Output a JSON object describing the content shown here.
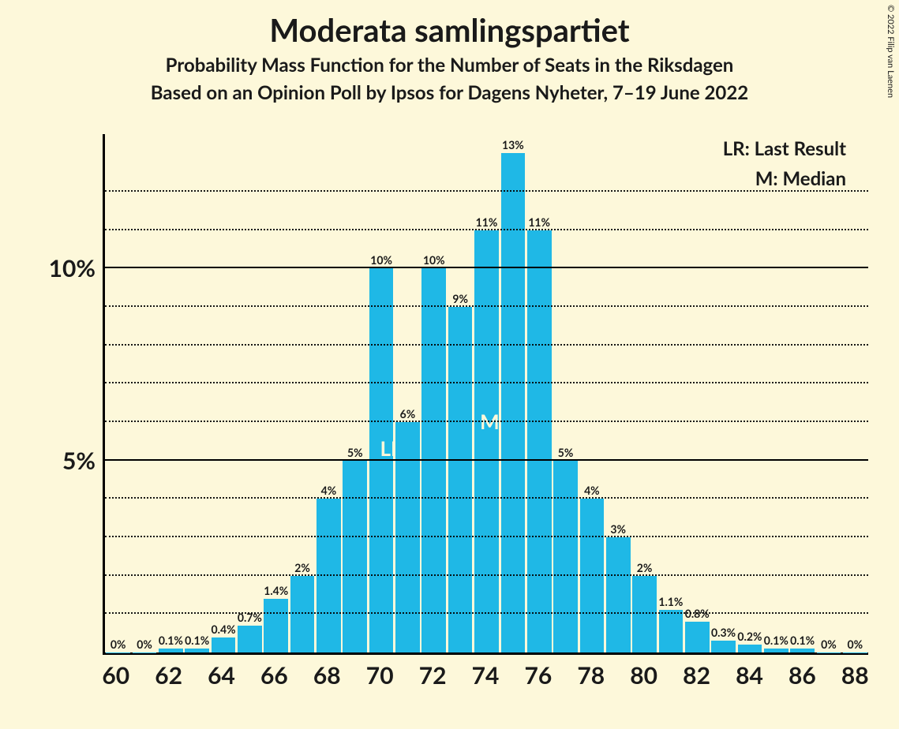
{
  "title": "Moderata samlingspartiet",
  "subtitle1": "Probability Mass Function for the Number of Seats in the Riksdagen",
  "subtitle2": "Based on an Opinion Poll by Ipsos for Dagens Nyheter, 7–19 June 2022",
  "copyright": "© 2022 Filip van Laenen",
  "legend": {
    "lr": "LR: Last Result",
    "m": "M: Median"
  },
  "annotations": {
    "lr_label": "LR",
    "m_label": "M",
    "lr_seat": 70,
    "m_seat": 74
  },
  "chart": {
    "type": "bar",
    "background_color": "#fdf8da",
    "bar_color": "#1fb8e6",
    "axis_color": "#000000",
    "grid_major_color": "#000000",
    "grid_minor_color": "#000000",
    "bar_width_ratio": 0.92,
    "title_fontsize": 40,
    "subtitle_fontsize": 24,
    "axis_label_fontsize": 30,
    "bar_label_fontsize": 14,
    "ymax": 13.5,
    "y_major_ticks": [
      5,
      10
    ],
    "y_major_labels": [
      "5%",
      "10%"
    ],
    "y_minor_step": 1,
    "x_min": 60,
    "x_max": 88,
    "x_tick_step": 2,
    "x_tick_labels": [
      "60",
      "62",
      "64",
      "66",
      "68",
      "70",
      "72",
      "74",
      "76",
      "78",
      "80",
      "82",
      "84",
      "86",
      "88"
    ],
    "seats": [
      60,
      61,
      62,
      63,
      64,
      65,
      66,
      67,
      68,
      69,
      70,
      71,
      72,
      73,
      74,
      75,
      76,
      77,
      78,
      79,
      80,
      81,
      82,
      83,
      84,
      85,
      86,
      87,
      88
    ],
    "values": [
      0,
      0,
      0.1,
      0.1,
      0.4,
      0.7,
      1.4,
      2,
      4,
      5,
      10,
      6,
      10,
      9,
      11,
      13,
      11,
      5,
      4,
      3,
      2,
      1.1,
      0.8,
      0.3,
      0.2,
      0.1,
      0.1,
      0,
      0
    ],
    "value_labels": [
      "0%",
      "0%",
      "0.1%",
      "0.1%",
      "0.4%",
      "0.7%",
      "1.4%",
      "2%",
      "4%",
      "5%",
      "10%",
      "6%",
      "10%",
      "9%",
      "11%",
      "13%",
      "11%",
      "5%",
      "4%",
      "3%",
      "2%",
      "1.1%",
      "0.8%",
      "0.3%",
      "0.2%",
      "0.1%",
      "0.1%",
      "0%",
      "0%"
    ]
  }
}
